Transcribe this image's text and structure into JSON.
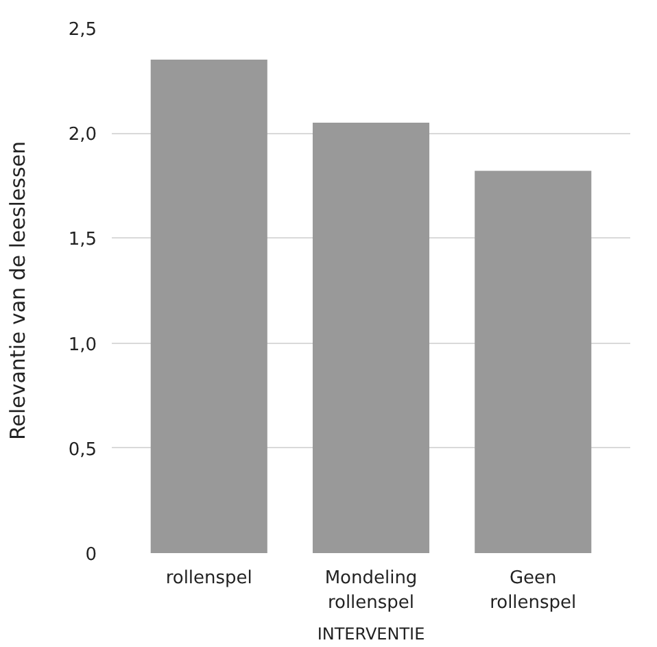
{
  "chart_data": {
    "type": "bar",
    "xlabel": "INTERVENTIE",
    "ylabel": "Relevantie van de leeslessen",
    "categories": [
      "rollenspel",
      "Mondeling rollenspel",
      "Geen rollenspel"
    ],
    "values": [
      2.35,
      2.05,
      1.82
    ],
    "color": "#999999",
    "ylim": [
      0,
      2.5
    ],
    "yticks": [
      0,
      {
        "value": 0.5,
        "label": "0,5"
      },
      {
        "value": 1.0,
        "label": "1,0"
      },
      {
        "value": 1.5,
        "label": "1,5"
      },
      {
        "value": 2.0,
        "label": "2,0"
      },
      {
        "value": 2.5,
        "label": "2,5"
      }
    ],
    "grid": "y"
  }
}
